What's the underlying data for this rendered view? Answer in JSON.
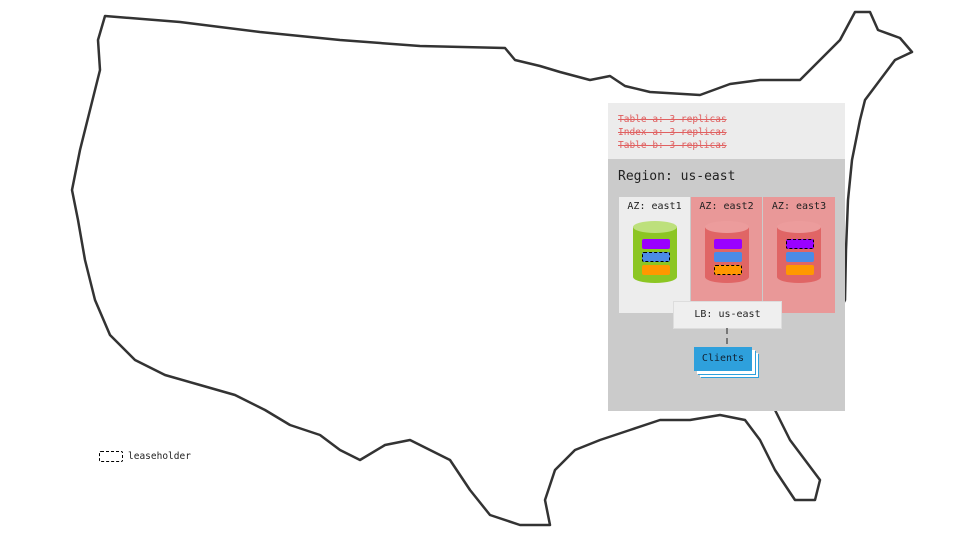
{
  "strikethrough_notes": [
    "Table a: 3 replicas",
    "Index a: 3 replicas",
    "Table b: 3 replicas"
  ],
  "region": {
    "label": "Region: us-east"
  },
  "azs": [
    {
      "label": "AZ: east1",
      "status": "healthy",
      "bg": "#ededed",
      "cyl": "#8cc623",
      "cyl_top": "#bde07c",
      "leaseholder": 1
    },
    {
      "label": "AZ: east2",
      "status": "failed",
      "bg": "#e99898",
      "cyl": "#e06565",
      "cyl_top": "#ec9c9c",
      "leaseholder": 2
    },
    {
      "label": "AZ: east3",
      "status": "failed",
      "bg": "#e99898",
      "cyl": "#e06565",
      "cyl_top": "#ec9c9c",
      "leaseholder": 0
    }
  ],
  "range_colors": [
    "#9a00ff",
    "#4b8be6",
    "#ff9800"
  ],
  "load_balancer": {
    "label": "LB: us-east"
  },
  "clients": {
    "label": "Clients"
  },
  "legend": {
    "label": "leaseholder"
  }
}
